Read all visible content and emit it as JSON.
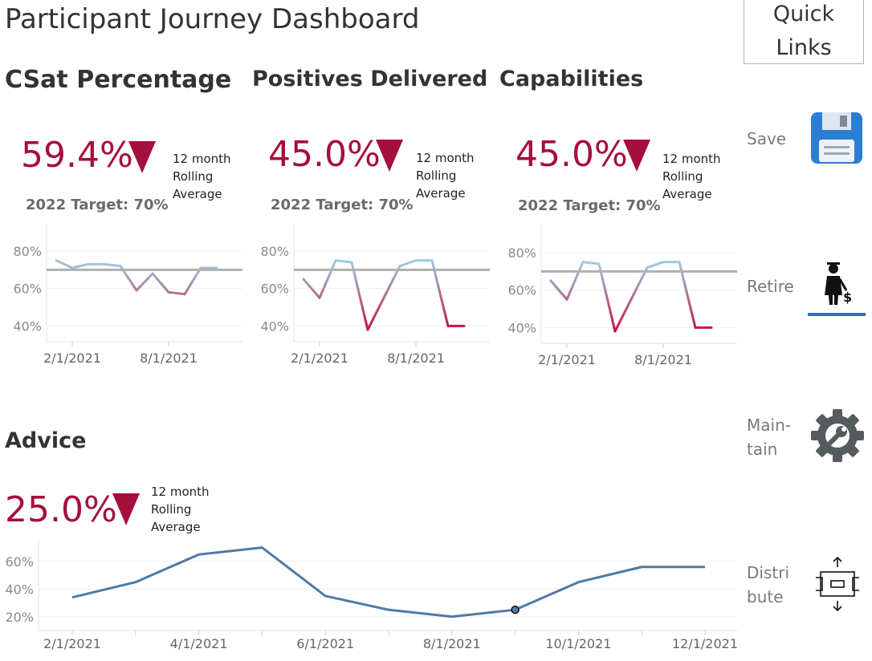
{
  "header": {
    "title": "Participant Journey Dashboard",
    "quick_links": [
      "Quick",
      "Links"
    ]
  },
  "kpis": [
    {
      "title": "CSat Percentage",
      "value": "59.4%",
      "rolling": [
        "12 month",
        "Rolling",
        "Average"
      ],
      "target": "2022 Target: 70%"
    },
    {
      "title": "Positives Delivered",
      "value": "45.0%",
      "rolling": [
        "12 month",
        "Rolling",
        "Average"
      ],
      "target": "2022 Target: 70%"
    },
    {
      "title": "Capabilities",
      "value": "45.0%",
      "rolling": [
        "12 month",
        "Rolling",
        "Average"
      ],
      "target": "2022 Target: 70%"
    }
  ],
  "advice": {
    "title": "Advice",
    "value": "25.0%",
    "rolling": [
      "12 month",
      "Rolling",
      "Average"
    ]
  },
  "sidebar": [
    {
      "label_lines": [
        "Save"
      ],
      "icon": "save-icon"
    },
    {
      "label_lines": [
        "Retire"
      ],
      "icon": "retire-icon"
    },
    {
      "label_lines": [
        "Main-",
        "tain"
      ],
      "icon": "maintain-gear-icon"
    },
    {
      "label_lines": [
        "Distri",
        "bute"
      ],
      "icon": "distribute-icon"
    }
  ],
  "colors": {
    "accent": "#a50f3c",
    "high": "#9ecae1",
    "low": "#c4103e",
    "line": "#4e79a7",
    "target_line": "#b0b0b0"
  },
  "chart_data": [
    {
      "type": "line",
      "name": "CSat Percentage",
      "x": [
        "1/1/2021",
        "2/1/2021",
        "3/1/2021",
        "4/1/2021",
        "5/1/2021",
        "6/1/2021",
        "7/1/2021",
        "8/1/2021",
        "9/1/2021",
        "10/1/2021",
        "11/1/2021",
        "12/1/2021"
      ],
      "values": [
        0.75,
        0.71,
        0.73,
        0.73,
        0.72,
        0.59,
        0.68,
        0.58,
        0.57,
        0.71,
        0.71,
        null
      ],
      "target": 0.7,
      "y_ticks": [
        "40%",
        "60%",
        "80%"
      ],
      "x_ticks": [
        "2/1/2021",
        "8/1/2021"
      ],
      "ylim": [
        0.35,
        0.95
      ]
    },
    {
      "type": "line",
      "name": "Positives Delivered",
      "x": [
        "1/1/2021",
        "2/1/2021",
        "3/1/2021",
        "4/1/2021",
        "5/1/2021",
        "6/1/2021",
        "7/1/2021",
        "8/1/2021",
        "9/1/2021",
        "10/1/2021",
        "11/1/2021",
        "12/1/2021"
      ],
      "values": [
        0.65,
        0.55,
        0.75,
        0.74,
        0.38,
        0.55,
        0.72,
        0.75,
        0.75,
        0.4,
        0.4,
        null
      ],
      "target": 0.7,
      "y_ticks": [
        "40%",
        "60%",
        "80%"
      ],
      "x_ticks": [
        "2/1/2021",
        "8/1/2021"
      ],
      "ylim": [
        0.35,
        0.95
      ]
    },
    {
      "type": "line",
      "name": "Capabilities",
      "x": [
        "1/1/2021",
        "2/1/2021",
        "3/1/2021",
        "4/1/2021",
        "5/1/2021",
        "6/1/2021",
        "7/1/2021",
        "8/1/2021",
        "9/1/2021",
        "10/1/2021",
        "11/1/2021",
        "12/1/2021"
      ],
      "values": [
        0.65,
        0.55,
        0.75,
        0.74,
        0.38,
        0.55,
        0.72,
        0.75,
        0.75,
        0.4,
        0.4,
        null
      ],
      "target": 0.7,
      "y_ticks": [
        "40%",
        "60%",
        "80%"
      ],
      "x_ticks": [
        "2/1/2021",
        "8/1/2021"
      ],
      "ylim": [
        0.35,
        0.95
      ]
    },
    {
      "type": "line",
      "name": "Advice",
      "x": [
        "2/1/2021",
        "3/1/2021",
        "4/1/2021",
        "5/1/2021",
        "6/1/2021",
        "7/1/2021",
        "8/1/2021",
        "9/1/2021",
        "10/1/2021",
        "11/1/2021",
        "12/1/2021"
      ],
      "values": [
        0.34,
        0.45,
        0.65,
        0.7,
        0.35,
        0.25,
        0.2,
        0.25,
        0.45,
        0.56,
        0.56
      ],
      "highlight_index": 7,
      "y_ticks": [
        "20%",
        "40%",
        "60%"
      ],
      "x_ticks": [
        "2/1/2021",
        "4/1/2021",
        "6/1/2021",
        "8/1/2021",
        "10/1/2021",
        "12/1/2021"
      ],
      "ylim": [
        0.1,
        0.75
      ]
    }
  ]
}
